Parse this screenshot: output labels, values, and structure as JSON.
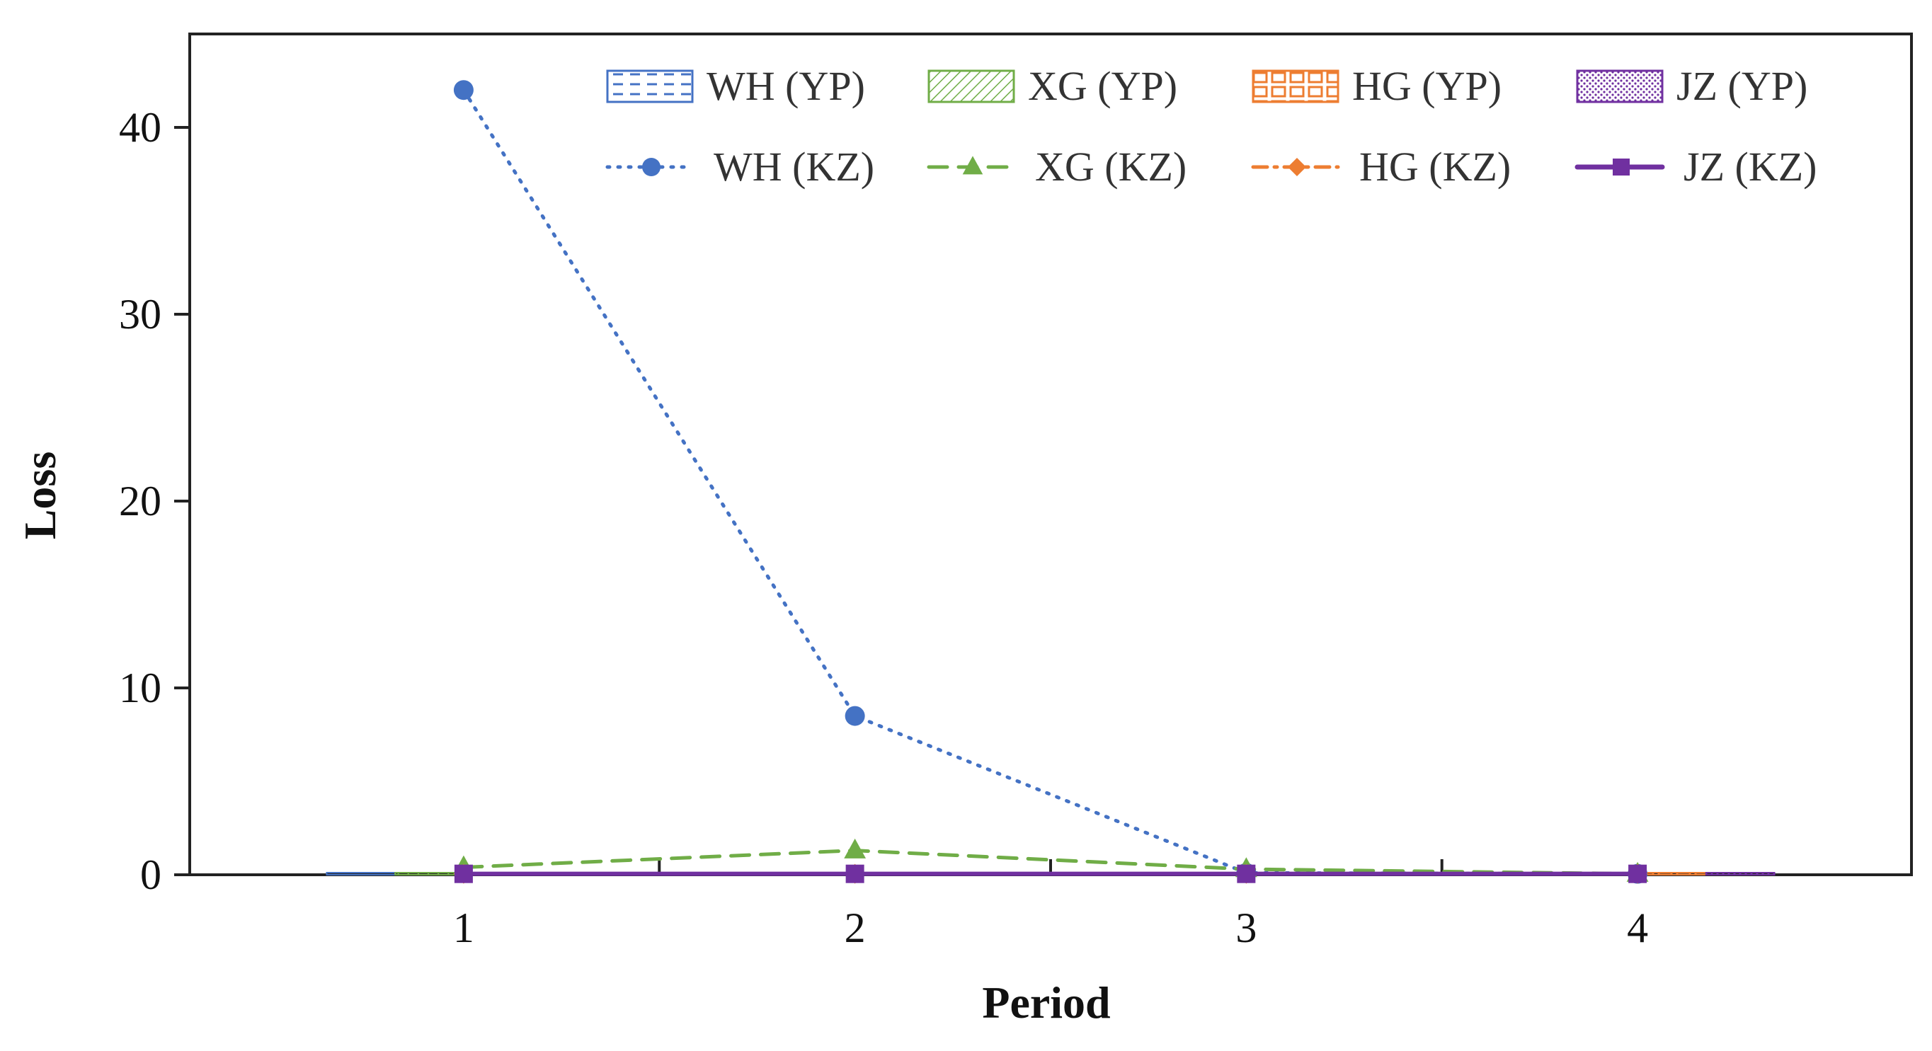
{
  "chart_data": {
    "type": "bar+line",
    "title": "",
    "xlabel": "Period",
    "ylabel": "Loss",
    "categories": [
      "1",
      "2",
      "3",
      "4"
    ],
    "ylim": [
      0,
      45
    ],
    "yticks": [
      0,
      10,
      20,
      30,
      40
    ],
    "legend_position": "top-right",
    "bar_series": [
      {
        "name": "WH (YP)",
        "color": "#4472c4",
        "pattern": "dashed-lines",
        "values": [
          0,
          0,
          0,
          0
        ]
      },
      {
        "name": "XG (YP)",
        "color": "#70ad47",
        "pattern": "diagonal-hatch",
        "values": [
          0,
          0,
          0,
          0
        ]
      },
      {
        "name": "HG (YP)",
        "color": "#ed7d31",
        "pattern": "brick",
        "values": [
          0,
          0,
          0,
          0
        ]
      },
      {
        "name": "JZ (YP)",
        "color": "#7030a0",
        "pattern": "dots",
        "values": [
          0,
          0,
          0,
          0
        ]
      }
    ],
    "line_series": [
      {
        "name": "WH (KZ)",
        "color": "#4472c4",
        "dash": "dotted",
        "marker": "circle",
        "values": [
          42.0,
          8.5,
          0.1,
          0.05
        ]
      },
      {
        "name": "XG (KZ)",
        "color": "#70ad47",
        "dash": "dashed",
        "marker": "triangle",
        "values": [
          0.4,
          1.3,
          0.3,
          0.05
        ]
      },
      {
        "name": "HG (KZ)",
        "color": "#ed7d31",
        "dash": "dashdot",
        "marker": "diamond",
        "values": [
          0.05,
          0.05,
          0.05,
          0.05
        ]
      },
      {
        "name": "JZ (KZ)",
        "color": "#7030a0",
        "dash": "solid",
        "marker": "square",
        "values": [
          0.05,
          0.05,
          0.05,
          0.05
        ]
      }
    ]
  }
}
